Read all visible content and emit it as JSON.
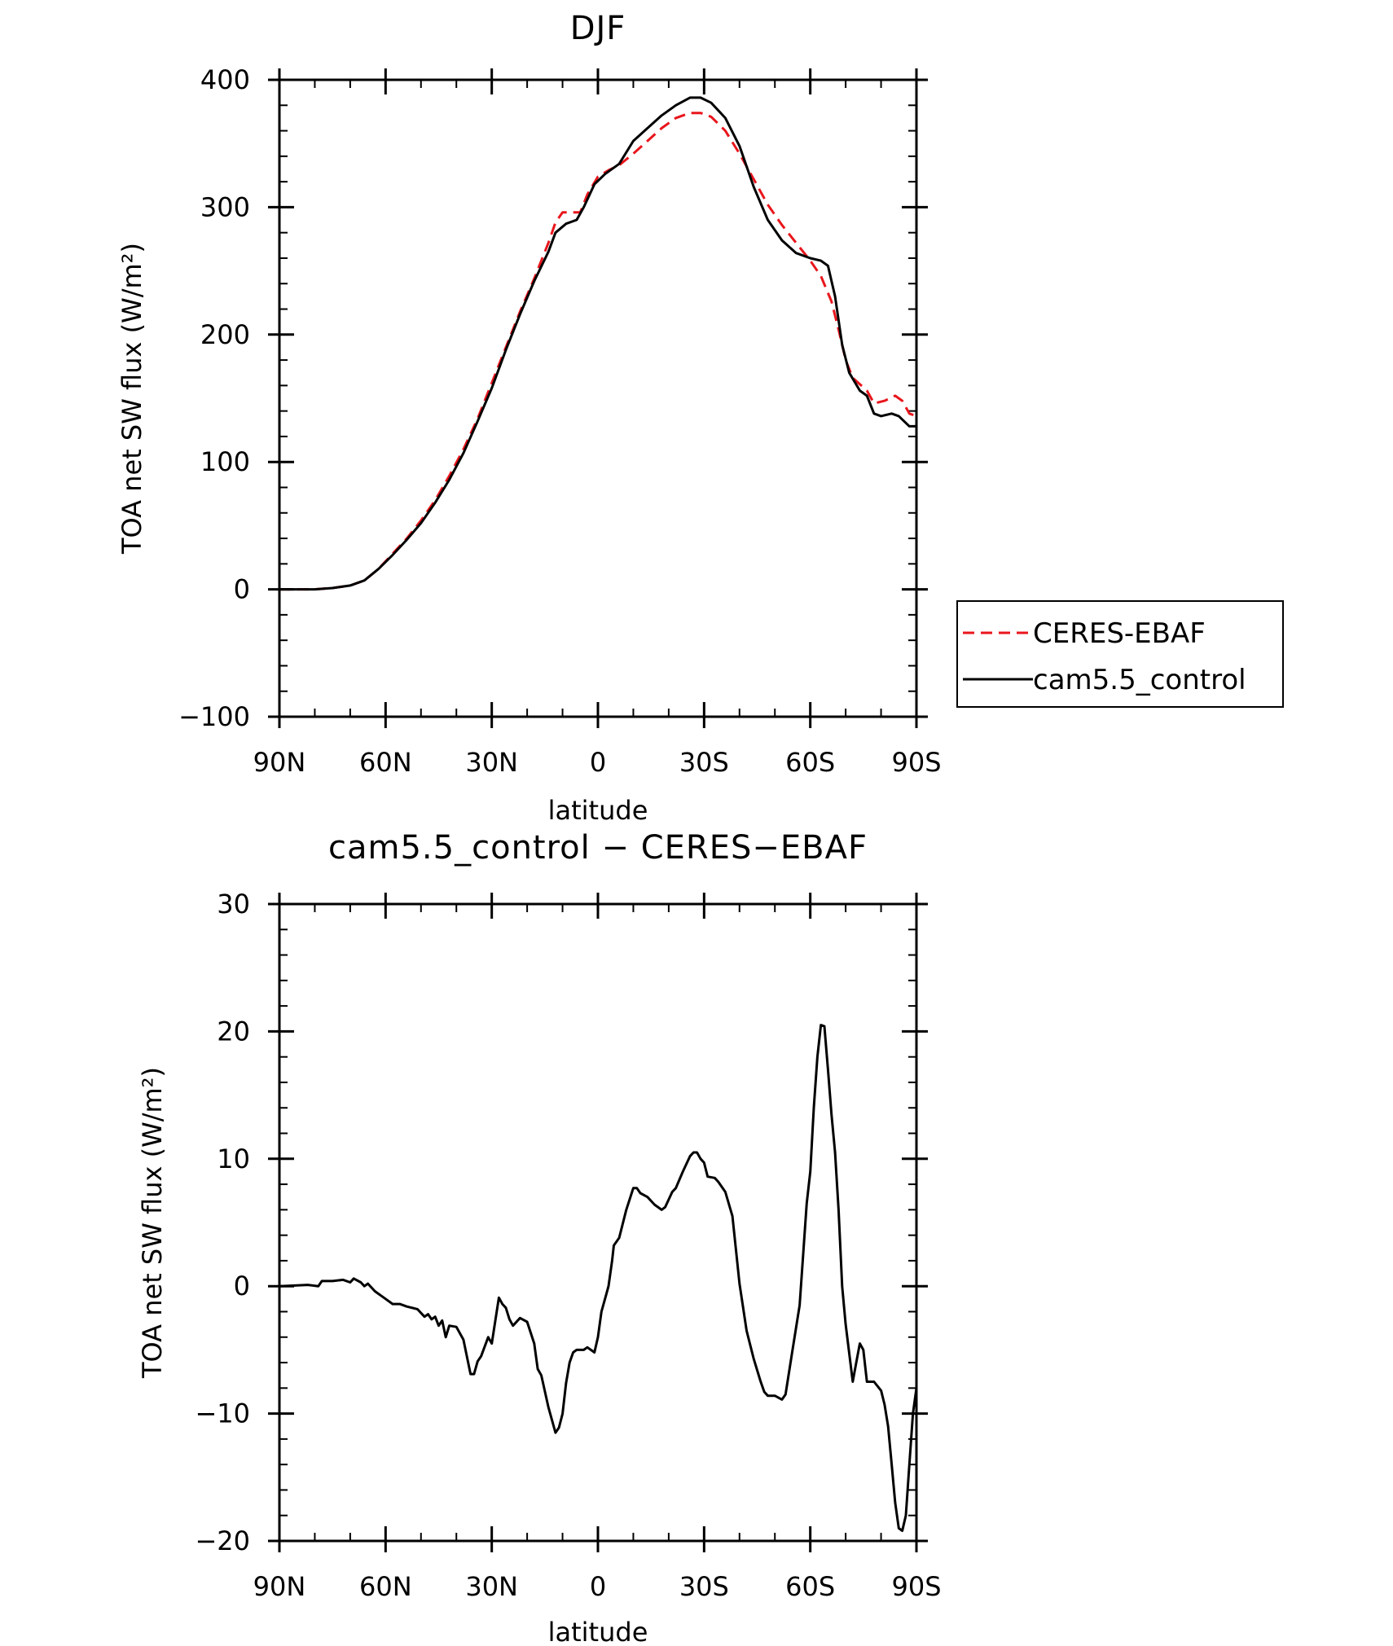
{
  "chart_data": [
    {
      "type": "line",
      "title": "DJF",
      "xlabel": "latitude",
      "ylabel": "TOA net SW flux (W/m²)",
      "ylim": [
        -100,
        400
      ],
      "yticks": [
        "400",
        "300",
        "200",
        "100",
        "0",
        "−100"
      ],
      "ytick_values": [
        400,
        300,
        200,
        100,
        0,
        -100
      ],
      "xlim": [
        -90,
        90
      ],
      "xticks": [
        "90N",
        "60N",
        "30N",
        "0",
        "30S",
        "60S",
        "90S"
      ],
      "xtick_values": [
        -90,
        -60,
        -30,
        0,
        30,
        60,
        90
      ],
      "legend_position": "right",
      "series": [
        {
          "name": "CERES-EBAF",
          "color": "#e8161c",
          "style": "dashed",
          "points": [
            [
              -90,
              0
            ],
            [
              -80,
              0
            ],
            [
              -75,
              1
            ],
            [
              -70,
              3
            ],
            [
              -66,
              7
            ],
            [
              -62,
              16
            ],
            [
              -58,
              28
            ],
            [
              -54,
              40
            ],
            [
              -50,
              54
            ],
            [
              -46,
              70
            ],
            [
              -42,
              89
            ],
            [
              -38,
              110
            ],
            [
              -34,
              134
            ],
            [
              -30,
              162
            ],
            [
              -26,
              190
            ],
            [
              -22,
              218
            ],
            [
              -18,
              244
            ],
            [
              -14,
              272
            ],
            [
              -12,
              288
            ],
            [
              -10,
              296
            ],
            [
              -8,
              296
            ],
            [
              -5,
              296
            ],
            [
              -3,
              310
            ],
            [
              0,
              324
            ],
            [
              3,
              329
            ],
            [
              6,
              333
            ],
            [
              10,
              342
            ],
            [
              14,
              352
            ],
            [
              18,
              362
            ],
            [
              22,
              370
            ],
            [
              26,
              374
            ],
            [
              29,
              374
            ],
            [
              32,
              371
            ],
            [
              36,
              360
            ],
            [
              40,
              342
            ],
            [
              44,
              322
            ],
            [
              48,
              302
            ],
            [
              52,
              286
            ],
            [
              56,
              272
            ],
            [
              60,
              258
            ],
            [
              63,
              246
            ],
            [
              66,
              226
            ],
            [
              68,
              204
            ],
            [
              70,
              180
            ],
            [
              72,
              166
            ],
            [
              76,
              156
            ],
            [
              78,
              146
            ],
            [
              81,
              148
            ],
            [
              84,
              152
            ],
            [
              86,
              148
            ],
            [
              88,
              138
            ],
            [
              90,
              136
            ]
          ]
        },
        {
          "name": "cam5.5_control",
          "color": "#000000",
          "style": "solid",
          "points": [
            [
              -90,
              0
            ],
            [
              -80,
              0
            ],
            [
              -75,
              1
            ],
            [
              -70,
              3
            ],
            [
              -66,
              7
            ],
            [
              -62,
              16
            ],
            [
              -58,
              27
            ],
            [
              -54,
              39
            ],
            [
              -50,
              52
            ],
            [
              -46,
              68
            ],
            [
              -42,
              86
            ],
            [
              -38,
              107
            ],
            [
              -34,
              132
            ],
            [
              -30,
              158
            ],
            [
              -26,
              188
            ],
            [
              -22,
              216
            ],
            [
              -18,
              242
            ],
            [
              -14,
              265
            ],
            [
              -12,
              280
            ],
            [
              -9,
              287
            ],
            [
              -6,
              290
            ],
            [
              -4,
              300
            ],
            [
              -1,
              318
            ],
            [
              2,
              326
            ],
            [
              6,
              334
            ],
            [
              10,
              352
            ],
            [
              14,
              362
            ],
            [
              18,
              372
            ],
            [
              22,
              380
            ],
            [
              26,
              386
            ],
            [
              29,
              386
            ],
            [
              32,
              382
            ],
            [
              36,
              370
            ],
            [
              40,
              348
            ],
            [
              44,
              316
            ],
            [
              48,
              290
            ],
            [
              52,
              274
            ],
            [
              56,
              264
            ],
            [
              60,
              260
            ],
            [
              63,
              258
            ],
            [
              65,
              254
            ],
            [
              67,
              230
            ],
            [
              69,
              192
            ],
            [
              71,
              170
            ],
            [
              74,
              156
            ],
            [
              76,
              152
            ],
            [
              78,
              138
            ],
            [
              80,
              136
            ],
            [
              83,
              138
            ],
            [
              85,
              136
            ],
            [
              88,
              128
            ],
            [
              90,
              128
            ]
          ]
        }
      ]
    },
    {
      "type": "line",
      "title": "cam5.5_control − CERES−EBAF",
      "xlabel": "latitude",
      "ylabel": "TOA net SW flux (W/m²)",
      "ylim": [
        -20,
        30
      ],
      "yticks": [
        "30",
        "20",
        "10",
        "0",
        "−10",
        "−20"
      ],
      "ytick_values": [
        30,
        20,
        10,
        0,
        -10,
        -20
      ],
      "xlim": [
        -90,
        90
      ],
      "xticks": [
        "90N",
        "60N",
        "30N",
        "0",
        "30S",
        "60S",
        "90S"
      ],
      "xtick_values": [
        -90,
        -60,
        -30,
        0,
        30,
        60,
        90
      ],
      "series": [
        {
          "color": "#000000",
          "style": "solid",
          "points": [
            [
              -90,
              0
            ],
            [
              -82,
              0.1
            ],
            [
              -79,
              0
            ],
            [
              -78,
              0.4
            ],
            [
              -75,
              0.4
            ],
            [
              -72,
              0.5
            ],
            [
              -70,
              0.3
            ],
            [
              -69,
              0.6
            ],
            [
              -67,
              0.3
            ],
            [
              -66,
              0
            ],
            [
              -65,
              0.2
            ],
            [
              -63,
              -0.4
            ],
            [
              -60,
              -1
            ],
            [
              -58,
              -1.4
            ],
            [
              -56,
              -1.4
            ],
            [
              -54,
              -1.6
            ],
            [
              -51,
              -1.8
            ],
            [
              -49,
              -2.4
            ],
            [
              -48,
              -2.2
            ],
            [
              -47,
              -2.6
            ],
            [
              -46,
              -2.4
            ],
            [
              -45,
              -3.1
            ],
            [
              -44,
              -2.7
            ],
            [
              -43,
              -4
            ],
            [
              -42,
              -3.1
            ],
            [
              -40,
              -3.2
            ],
            [
              -38,
              -4.2
            ],
            [
              -36,
              -6.9
            ],
            [
              -35,
              -6.9
            ],
            [
              -34,
              -5.9
            ],
            [
              -33,
              -5.5
            ],
            [
              -31,
              -4
            ],
            [
              -30,
              -4.5
            ],
            [
              -28,
              -0.9
            ],
            [
              -27,
              -1.4
            ],
            [
              -26,
              -1.7
            ],
            [
              -25,
              -2.6
            ],
            [
              -24,
              -3.1
            ],
            [
              -22,
              -2.5
            ],
            [
              -20,
              -2.8
            ],
            [
              -18,
              -4.5
            ],
            [
              -17,
              -6.5
            ],
            [
              -16,
              -7
            ],
            [
              -14,
              -9.5
            ],
            [
              -12,
              -11.5
            ],
            [
              -11,
              -11.1
            ],
            [
              -10,
              -10
            ],
            [
              -9,
              -7.6
            ],
            [
              -8,
              -6
            ],
            [
              -7,
              -5.2
            ],
            [
              -6,
              -5
            ],
            [
              -4,
              -5
            ],
            [
              -3,
              -4.8
            ],
            [
              -1,
              -5.2
            ],
            [
              0,
              -4
            ],
            [
              1,
              -2
            ],
            [
              2,
              -1
            ],
            [
              3,
              0
            ],
            [
              4,
              2
            ],
            [
              4.5,
              3.2
            ],
            [
              6,
              3.8
            ],
            [
              8,
              6
            ],
            [
              10,
              7.7
            ],
            [
              11,
              7.7
            ],
            [
              12,
              7.3
            ],
            [
              14,
              7
            ],
            [
              16,
              6.4
            ],
            [
              18,
              6
            ],
            [
              19,
              6.2
            ],
            [
              21,
              7.4
            ],
            [
              22,
              7.7
            ],
            [
              24,
              9
            ],
            [
              26,
              10.2
            ],
            [
              27,
              10.5
            ],
            [
              28,
              10.5
            ],
            [
              29,
              10
            ],
            [
              30,
              9.7
            ],
            [
              31,
              8.6
            ],
            [
              33,
              8.5
            ],
            [
              34,
              8.2
            ],
            [
              36,
              7.4
            ],
            [
              38,
              5.5
            ],
            [
              40,
              0.2
            ],
            [
              42,
              -3.5
            ],
            [
              44,
              -5.7
            ],
            [
              46,
              -7.5
            ],
            [
              47,
              -8.3
            ],
            [
              48,
              -8.6
            ],
            [
              50,
              -8.6
            ],
            [
              52,
              -8.9
            ],
            [
              53,
              -8.5
            ],
            [
              55,
              -5
            ],
            [
              57,
              -1.5
            ],
            [
              59,
              6.5
            ],
            [
              60,
              9
            ],
            [
              61,
              14
            ],
            [
              62,
              18
            ],
            [
              63,
              20.5
            ],
            [
              64,
              20.4
            ],
            [
              65,
              17
            ],
            [
              66,
              13.5
            ],
            [
              67,
              10.5
            ],
            [
              68,
              6
            ],
            [
              69,
              0
            ],
            [
              70,
              -3
            ],
            [
              72,
              -7.5
            ],
            [
              73,
              -6
            ],
            [
              74,
              -4.5
            ],
            [
              75,
              -5
            ],
            [
              76,
              -7.5
            ],
            [
              78,
              -7.5
            ],
            [
              80,
              -8.2
            ],
            [
              81,
              -9.3
            ],
            [
              82,
              -11
            ],
            [
              83,
              -14
            ],
            [
              84,
              -17
            ],
            [
              85,
              -19
            ],
            [
              86,
              -19.2
            ],
            [
              87,
              -18
            ],
            [
              88,
              -14
            ],
            [
              89,
              -10
            ],
            [
              90,
              -8
            ]
          ]
        }
      ]
    }
  ]
}
